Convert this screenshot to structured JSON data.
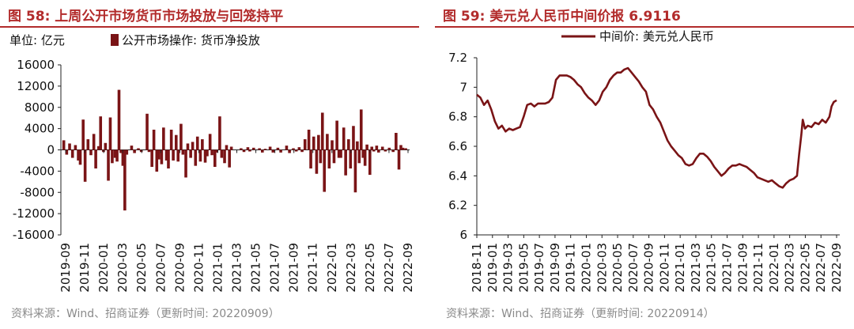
{
  "left": {
    "title": "图 58:  上周公开市场货币市场投放与回笼持平",
    "source": "资料来源：Wind、招商证券（更新时间: 20220909）",
    "colors": {
      "title": "#b22b2b",
      "bar": "#7a1416"
    },
    "chart_data": {
      "type": "bar",
      "unit_label": "单位:  亿元",
      "legend": "公开市场操作: 货币净投放",
      "y_ticks": [
        "16000",
        "12000",
        "8000",
        "4000",
        "0",
        "-4000",
        "-8000",
        "-12000",
        "-16000"
      ],
      "ylim": [
        -16000,
        16000
      ],
      "x_ticks": [
        "2019-09",
        "2019-11",
        "2020-01",
        "2020-03",
        "2020-05",
        "2020-07",
        "2020-09",
        "2020-11",
        "2021-01",
        "2021-03",
        "2021-05",
        "2021-07",
        "2021-09",
        "2021-11",
        "2022-01",
        "2022-03",
        "2022-05",
        "2022-07",
        "2022-09"
      ],
      "x_range": [
        0,
        36
      ],
      "series": [
        {
          "values": [
            [
              0.3,
              1800
            ],
            [
              0.6,
              -900
            ],
            [
              0.9,
              1200
            ],
            [
              1.2,
              -1500
            ],
            [
              1.5,
              900
            ],
            [
              1.8,
              -2000
            ],
            [
              2.0,
              -2800
            ],
            [
              2.3,
              5700
            ],
            [
              2.5,
              -6000
            ],
            [
              2.8,
              2000
            ],
            [
              3.1,
              -1000
            ],
            [
              3.4,
              3000
            ],
            [
              3.6,
              -3500
            ],
            [
              3.9,
              700
            ],
            [
              4.1,
              6300
            ],
            [
              4.4,
              -400
            ],
            [
              4.6,
              1300
            ],
            [
              4.9,
              -5800
            ],
            [
              5.1,
              6100
            ],
            [
              5.3,
              -2500
            ],
            [
              5.6,
              -1500
            ],
            [
              5.8,
              -2200
            ],
            [
              6.0,
              11300
            ],
            [
              6.2,
              -600
            ],
            [
              6.4,
              -3000
            ],
            [
              6.6,
              -11400
            ],
            [
              6.8,
              -900
            ],
            [
              7.3,
              800
            ],
            [
              7.6,
              -600
            ],
            [
              8.0,
              300
            ],
            [
              8.3,
              -400
            ],
            [
              8.9,
              6800
            ],
            [
              9.1,
              -400
            ],
            [
              9.4,
              -3200
            ],
            [
              9.6,
              3800
            ],
            [
              9.9,
              -4100
            ],
            [
              10.1,
              -1800
            ],
            [
              10.4,
              -2700
            ],
            [
              10.6,
              4200
            ],
            [
              10.9,
              -2000
            ],
            [
              11.1,
              -3500
            ],
            [
              11.4,
              3800
            ],
            [
              11.6,
              -2000
            ],
            [
              11.9,
              2800
            ],
            [
              12.1,
              -2200
            ],
            [
              12.4,
              4900
            ],
            [
              12.6,
              -900
            ],
            [
              12.9,
              -5200
            ],
            [
              13.1,
              1200
            ],
            [
              13.4,
              -1500
            ],
            [
              13.6,
              1500
            ],
            [
              13.9,
              -3000
            ],
            [
              14.1,
              2500
            ],
            [
              14.4,
              -2200
            ],
            [
              14.6,
              2000
            ],
            [
              14.9,
              -2400
            ],
            [
              15.1,
              -1200
            ],
            [
              15.4,
              3000
            ],
            [
              15.6,
              -1000
            ],
            [
              15.9,
              -3200
            ],
            [
              16.1,
              -500
            ],
            [
              16.4,
              6300
            ],
            [
              16.6,
              -1500
            ],
            [
              16.9,
              -2500
            ],
            [
              17.1,
              900
            ],
            [
              17.4,
              -3300
            ],
            [
              17.6,
              600
            ],
            [
              18.6,
              300
            ],
            [
              18.9,
              -400
            ],
            [
              19.3,
              500
            ],
            [
              19.5,
              -300
            ],
            [
              19.9,
              400
            ],
            [
              20.5,
              300
            ],
            [
              20.8,
              -500
            ],
            [
              21.1,
              200
            ],
            [
              21.6,
              600
            ],
            [
              21.9,
              -500
            ],
            [
              22.4,
              400
            ],
            [
              22.7,
              -500
            ],
            [
              23.3,
              800
            ],
            [
              23.6,
              -600
            ],
            [
              24.0,
              300
            ],
            [
              24.3,
              -300
            ],
            [
              24.6,
              500
            ],
            [
              24.9,
              -400
            ],
            [
              25.2,
              2000
            ],
            [
              25.6,
              3800
            ],
            [
              25.8,
              -3500
            ],
            [
              26.1,
              2500
            ],
            [
              26.4,
              -4500
            ],
            [
              26.6,
              2800
            ],
            [
              26.8,
              -2500
            ],
            [
              27.0,
              7000
            ],
            [
              27.2,
              -7900
            ],
            [
              27.5,
              3000
            ],
            [
              27.7,
              -3500
            ],
            [
              28.0,
              1800
            ],
            [
              28.2,
              -2500
            ],
            [
              28.5,
              5500
            ],
            [
              28.7,
              -1500
            ],
            [
              28.9,
              -1500
            ],
            [
              29.2,
              4200
            ],
            [
              29.4,
              -4800
            ],
            [
              29.7,
              2000
            ],
            [
              29.9,
              -3500
            ],
            [
              30.2,
              4500
            ],
            [
              30.4,
              -8000
            ],
            [
              30.6,
              1600
            ],
            [
              30.8,
              -2500
            ],
            [
              31.0,
              7600
            ],
            [
              31.2,
              -1500
            ],
            [
              31.4,
              -3000
            ],
            [
              31.6,
              1000
            ],
            [
              31.9,
              -4700
            ],
            [
              32.1,
              600
            ],
            [
              32.3,
              -300
            ],
            [
              32.6,
              800
            ],
            [
              32.8,
              -500
            ],
            [
              33.2,
              600
            ],
            [
              33.5,
              -300
            ],
            [
              33.9,
              400
            ],
            [
              34.3,
              -400
            ],
            [
              34.6,
              3200
            ],
            [
              34.9,
              -3700
            ],
            [
              35.1,
              900
            ],
            [
              35.3,
              400
            ],
            [
              35.6,
              300
            ]
          ]
        }
      ]
    }
  },
  "right": {
    "title": "图 59:  美元兑人民币中间价报 6.9116",
    "source": "资料来源：Wind、招商证券（更新时间: 20220914）",
    "colors": {
      "title": "#b22b2b",
      "line": "#7a1416"
    },
    "chart_data": {
      "type": "line",
      "legend": "中间价: 美元兑人民币",
      "y_ticks": [
        "7.2",
        "7",
        "6.8",
        "6.6",
        "6.4",
        "6.2",
        "6"
      ],
      "ylim": [
        6,
        7.2
      ],
      "x_ticks": [
        "2018-11",
        "2019-01",
        "2019-03",
        "2019-05",
        "2019-07",
        "2019-09",
        "2019-11",
        "2020-01",
        "2020-03",
        "2020-05",
        "2020-07",
        "2020-09",
        "2020-11",
        "2021-01",
        "2021-03",
        "2021-05",
        "2021-07",
        "2021-09",
        "2021-11",
        "2022-01",
        "2022-03",
        "2022-05",
        "2022-07",
        "2022-09"
      ],
      "x_range": [
        0,
        46
      ],
      "series": [
        {
          "values": [
            [
              0,
              6.95
            ],
            [
              0.5,
              6.93
            ],
            [
              1,
              6.88
            ],
            [
              1.5,
              6.91
            ],
            [
              2,
              6.85
            ],
            [
              2.5,
              6.77
            ],
            [
              3,
              6.72
            ],
            [
              3.5,
              6.74
            ],
            [
              4,
              6.7
            ],
            [
              4.5,
              6.72
            ],
            [
              5,
              6.71
            ],
            [
              5.5,
              6.72
            ],
            [
              6,
              6.73
            ],
            [
              6.5,
              6.8
            ],
            [
              7,
              6.88
            ],
            [
              7.5,
              6.89
            ],
            [
              8,
              6.87
            ],
            [
              8.5,
              6.89
            ],
            [
              9,
              6.89
            ],
            [
              9.5,
              6.89
            ],
            [
              10,
              6.9
            ],
            [
              10.5,
              6.93
            ],
            [
              11,
              7.05
            ],
            [
              11.5,
              7.08
            ],
            [
              12,
              7.08
            ],
            [
              12.5,
              7.08
            ],
            [
              13,
              7.07
            ],
            [
              13.5,
              7.05
            ],
            [
              14,
              7.02
            ],
            [
              14.5,
              7.0
            ],
            [
              15,
              6.96
            ],
            [
              15.5,
              6.93
            ],
            [
              16,
              6.91
            ],
            [
              16.5,
              6.88
            ],
            [
              17,
              6.91
            ],
            [
              17.5,
              6.97
            ],
            [
              18,
              7.0
            ],
            [
              18.5,
              7.05
            ],
            [
              19,
              7.08
            ],
            [
              19.5,
              7.1
            ],
            [
              20,
              7.1
            ],
            [
              20.5,
              7.12
            ],
            [
              21,
              7.13
            ],
            [
              21.5,
              7.1
            ],
            [
              22,
              7.07
            ],
            [
              22.5,
              7.04
            ],
            [
              23,
              7.0
            ],
            [
              23.5,
              6.97
            ],
            [
              24,
              6.88
            ],
            [
              24.5,
              6.85
            ],
            [
              25,
              6.8
            ],
            [
              25.5,
              6.76
            ],
            [
              26,
              6.7
            ],
            [
              26.5,
              6.64
            ],
            [
              27,
              6.6
            ],
            [
              27.5,
              6.57
            ],
            [
              28,
              6.54
            ],
            [
              28.5,
              6.52
            ],
            [
              29,
              6.48
            ],
            [
              29.5,
              6.47
            ],
            [
              30,
              6.48
            ],
            [
              30.5,
              6.52
            ],
            [
              31,
              6.55
            ],
            [
              31.5,
              6.55
            ],
            [
              32,
              6.53
            ],
            [
              32.5,
              6.5
            ],
            [
              33,
              6.46
            ],
            [
              33.5,
              6.43
            ],
            [
              34,
              6.4
            ],
            [
              34.5,
              6.42
            ],
            [
              35,
              6.45
            ],
            [
              35.5,
              6.47
            ],
            [
              36,
              6.47
            ],
            [
              36.5,
              6.48
            ],
            [
              37,
              6.47
            ],
            [
              37.5,
              6.46
            ],
            [
              38,
              6.44
            ],
            [
              38.5,
              6.42
            ],
            [
              39,
              6.39
            ],
            [
              39.5,
              6.38
            ],
            [
              40,
              6.37
            ],
            [
              40.5,
              6.36
            ],
            [
              41,
              6.37
            ],
            [
              41.5,
              6.35
            ],
            [
              42,
              6.33
            ],
            [
              42.5,
              6.32
            ],
            [
              43,
              6.35
            ],
            [
              43.5,
              6.37
            ],
            [
              44,
              6.38
            ],
            [
              44.5,
              6.4
            ],
            [
              44.8,
              6.55
            ],
            [
              45.1,
              6.68
            ],
            [
              45.3,
              6.78
            ],
            [
              45.6,
              6.72
            ],
            [
              46,
              6.74
            ],
            [
              46.5,
              6.73
            ],
            [
              47,
              6.76
            ],
            [
              47.5,
              6.75
            ],
            [
              48,
              6.78
            ],
            [
              48.5,
              6.76
            ],
            [
              49,
              6.8
            ],
            [
              49.3,
              6.87
            ],
            [
              49.6,
              6.9
            ],
            [
              50,
              6.9116
            ]
          ]
        }
      ]
    }
  }
}
